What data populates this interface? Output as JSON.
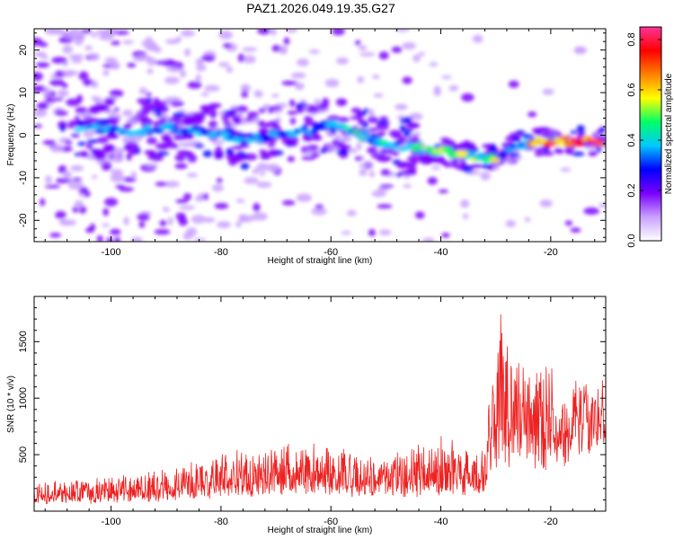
{
  "title": "PAZ1.2026.049.19.35.G27",
  "chart_data": [
    {
      "type": "heatmap",
      "name": "spectrogram",
      "xlabel": "Height of straight line (km)",
      "ylabel": "Frequency (Hz)",
      "xlim": [
        -114,
        -10
      ],
      "ylim": [
        -25,
        25
      ],
      "xticks": [
        -100,
        -80,
        -60,
        -40,
        -20
      ],
      "yticks": [
        -20,
        -10,
        0,
        10,
        20
      ],
      "ridge": {
        "x": [
          -106,
          -100,
          -95,
          -90,
          -85,
          -80,
          -75,
          -70,
          -65,
          -60,
          -57,
          -53,
          -50,
          -45,
          -40,
          -35,
          -30,
          -27,
          -24,
          -20,
          -15,
          -10
        ],
        "y": [
          2,
          1.5,
          1,
          2,
          1,
          0,
          -1,
          0,
          1,
          2.5,
          1,
          -0.5,
          -2,
          -3,
          -3.5,
          -5,
          -5.5,
          -3,
          -1.5,
          -1.5,
          -1.5,
          -1.5
        ]
      },
      "colorbar": {
        "label": "Normalized spectral amplitude",
        "range": [
          0.0,
          0.85
        ],
        "ticks": [
          "0.0",
          "0.2",
          "0.4",
          "0.6",
          "0.8"
        ],
        "colors": [
          "#ffffff",
          "#c9a0ff",
          "#7a00ff",
          "#0000ff",
          "#00c8ff",
          "#00ff66",
          "#ffff00",
          "#ff8000",
          "#ff0000",
          "#ff3399"
        ]
      }
    },
    {
      "type": "line",
      "name": "snr",
      "xlabel": "Height of straight line (km)",
      "ylabel": "SNR (10 * v/v)",
      "xlim": [
        -114,
        -10
      ],
      "ylim": [
        0,
        1900
      ],
      "xticks": [
        -100,
        -80,
        -60,
        -40,
        -20
      ],
      "yticks": [
        500,
        1000,
        1500
      ],
      "color": "#ee2222",
      "envelope": {
        "x": [
          -114,
          -100,
          -90,
          -80,
          -70,
          -60,
          -50,
          -45,
          -40,
          -35,
          -32,
          -31,
          -29,
          -26,
          -23,
          -20,
          -17,
          -15,
          -13,
          -10
        ],
        "base": [
          100,
          120,
          150,
          200,
          230,
          220,
          200,
          220,
          250,
          250,
          250,
          600,
          700,
          650,
          600,
          600,
          620,
          900,
          850,
          800
        ],
        "peak": [
          250,
          300,
          380,
          500,
          600,
          550,
          450,
          600,
          650,
          550,
          500,
          1100,
          1800,
          1300,
          1300,
          1400,
          900,
          1200,
          1100,
          1050
        ]
      }
    }
  ]
}
